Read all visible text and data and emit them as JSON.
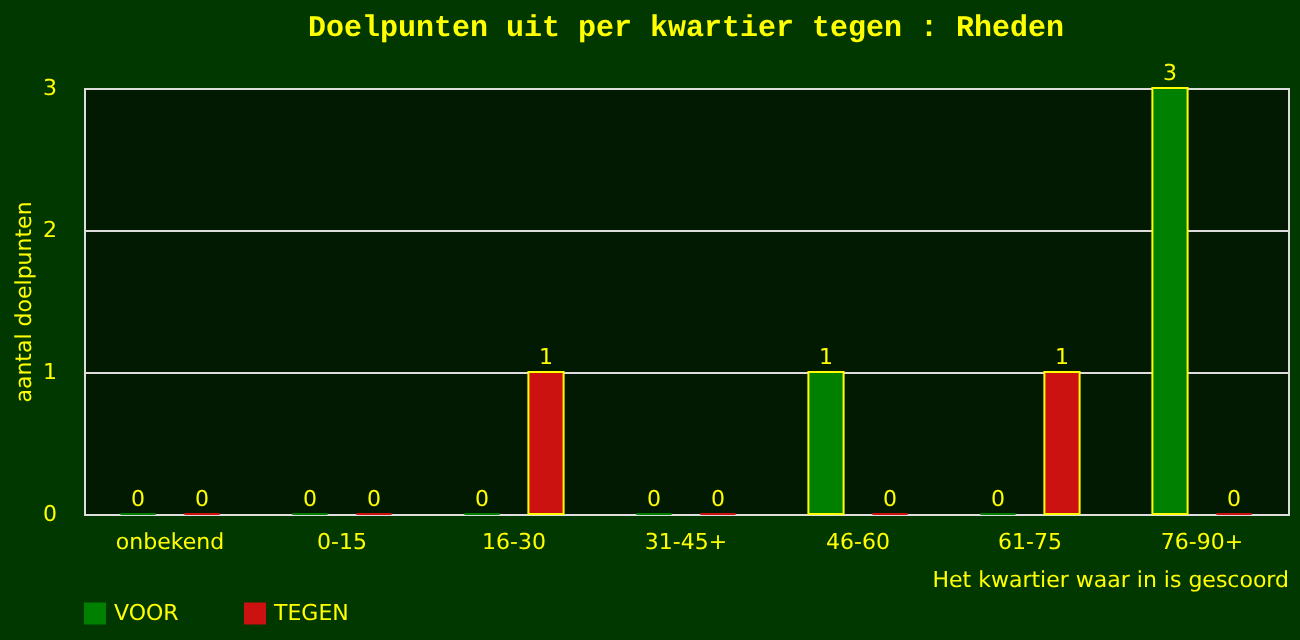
{
  "chart_data": {
    "type": "bar",
    "title": "Doelpunten uit per kwartier tegen : Rheden",
    "xlabel": "Het kwartier waar in is gescoord",
    "ylabel": "aantal doelpunten",
    "categories": [
      "onbekend",
      "0-15",
      "16-30",
      "31-45+",
      "46-60",
      "61-75",
      "76-90+"
    ],
    "series": [
      {
        "name": "VOOR",
        "color": "#008000",
        "values": [
          0,
          0,
          0,
          0,
          1,
          0,
          3
        ]
      },
      {
        "name": "TEGEN",
        "color": "#cc1111",
        "values": [
          0,
          0,
          1,
          0,
          0,
          1,
          0
        ]
      }
    ],
    "ylim": [
      0,
      3
    ],
    "yticks": [
      0,
      1,
      2,
      3
    ],
    "grid": "y",
    "legend": "bottom",
    "data_labels": true
  }
}
